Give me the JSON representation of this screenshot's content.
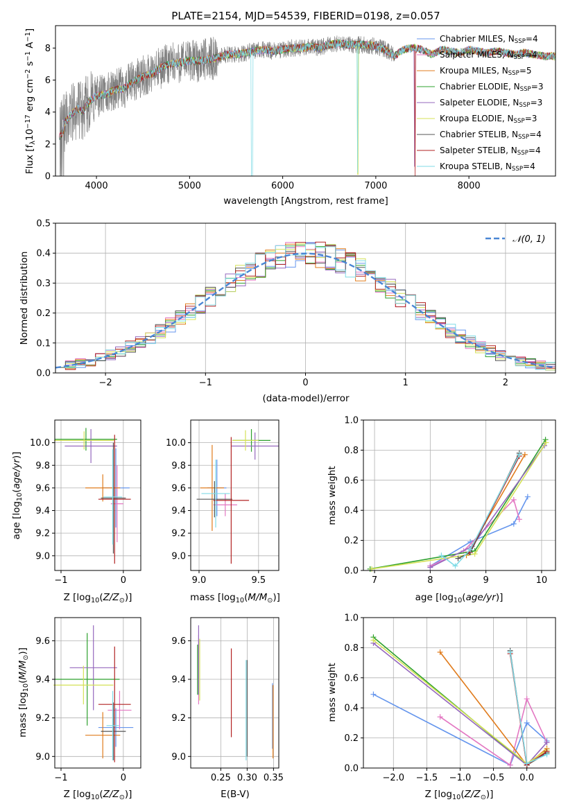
{
  "chart_data": [
    {
      "id": "spectrum",
      "type": "line",
      "title": "PLATE=2154, MJD=54539, FIBERID=0198, z=0.057",
      "xlabel": "wavelength [Angstrom, rest frame]",
      "ylabel": "Flux [f_λ 10^-17 erg cm^-2 s^-1 A^-1]",
      "xlim": [
        3560,
        8930
      ],
      "ylim": [
        0,
        9.4
      ],
      "xticks": [
        4000,
        5000,
        6000,
        7000,
        8000
      ],
      "yticks": [
        0,
        2,
        4,
        6,
        8
      ],
      "grid": false,
      "legend_position": "right",
      "data_color": "#808080",
      "continuum_points": {
        "x": [
          3600,
          3650,
          3700,
          3750,
          3800,
          3850,
          3900,
          3950,
          4000,
          4100,
          4200,
          4300,
          4400,
          4500,
          4600,
          4700,
          4800,
          4900,
          5000,
          5100,
          5200,
          5300,
          5400,
          5500,
          5600,
          5700,
          5800,
          5900,
          6000,
          6100,
          6200,
          6300,
          6400,
          6500,
          6600,
          6700,
          6800,
          6900,
          7000,
          7100,
          7200,
          7300,
          7400,
          7500,
          7600,
          7700,
          7800,
          7900,
          8000,
          8100,
          8200,
          8300,
          8400,
          8500,
          8600,
          8700,
          8800,
          8900
        ],
        "y": [
          2.8,
          3.3,
          3.6,
          4.0,
          4.2,
          4.0,
          4.5,
          4.8,
          5.0,
          5.1,
          5.4,
          5.5,
          5.9,
          6.2,
          6.4,
          6.8,
          7.0,
          7.1,
          7.2,
          7.2,
          7.3,
          7.4,
          7.6,
          7.6,
          7.7,
          7.8,
          7.9,
          7.8,
          7.9,
          8.0,
          8.0,
          8.1,
          8.0,
          8.2,
          8.3,
          8.2,
          8.2,
          8.2,
          8.1,
          7.9,
          7.5,
          7.9,
          8.0,
          7.9,
          7.6,
          7.9,
          7.8,
          7.7,
          7.9,
          7.8,
          7.7,
          7.8,
          7.7,
          7.6,
          7.7,
          7.6,
          7.5,
          7.5
        ]
      },
      "series": [
        {
          "name": "Chabrier MILES",
          "nssp": "4",
          "color": "#6495ed"
        },
        {
          "name": "Salpeter MILES",
          "nssp": "4",
          "color": "#e377c2"
        },
        {
          "name": "Kroupa MILES",
          "nssp": "5",
          "color": "#e07b1c"
        },
        {
          "name": "Chabrier ELODIE",
          "nssp": "3",
          "color": "#2ca02c"
        },
        {
          "name": "Salpeter ELODIE",
          "nssp": "3",
          "color": "#9467bd"
        },
        {
          "name": "Kroupa ELODIE",
          "nssp": "3",
          "color": "#d4e157"
        },
        {
          "name": "Chabrier STELIB",
          "nssp": "4",
          "color": "#555555"
        },
        {
          "name": "Salpeter STELIB",
          "nssp": "4",
          "color": "#b22222"
        },
        {
          "name": "Kroupa STELIB",
          "nssp": "4",
          "color": "#7fdbe6"
        }
      ]
    },
    {
      "id": "residuals",
      "type": "line",
      "xlabel": "(data-model)/error",
      "ylabel": "Normed distribution",
      "xlim": [
        -2.5,
        2.5
      ],
      "ylim": [
        0,
        0.5
      ],
      "xticks": [
        -2,
        -1,
        0,
        1,
        2
      ],
      "yticks": [
        0.0,
        0.1,
        0.2,
        0.3,
        0.4,
        0.5
      ],
      "grid": true,
      "legend_position": "top-right",
      "legend": "𝒩(0, 1)",
      "gaussian": {
        "mean": 0,
        "sigma": 1,
        "color": "#4a86d4"
      },
      "bin_width": 0.1,
      "series": [
        {
          "name": "Chabrier MILES",
          "color": "#6495ed",
          "jitter": 1
        },
        {
          "name": "Salpeter MILES",
          "color": "#e377c2",
          "jitter": 2
        },
        {
          "name": "Kroupa MILES",
          "color": "#e07b1c",
          "jitter": 3
        },
        {
          "name": "Chabrier ELODIE",
          "color": "#2ca02c",
          "jitter": 4
        },
        {
          "name": "Salpeter ELODIE",
          "color": "#9467bd",
          "jitter": 5
        },
        {
          "name": "Kroupa ELODIE",
          "color": "#d4e157",
          "jitter": 6
        },
        {
          "name": "Chabrier STELIB",
          "color": "#555555",
          "jitter": 7
        },
        {
          "name": "Salpeter STELIB",
          "color": "#b22222",
          "jitter": 8
        },
        {
          "name": "Kroupa STELIB",
          "color": "#7fdbe6",
          "jitter": 9
        }
      ]
    },
    {
      "id": "z-age",
      "type": "errorbar",
      "xlabel": "Z [log10(Z/Z☉)]",
      "ylabel": "age [log10(age/yr)]",
      "xlim": [
        -1.1,
        0.28
      ],
      "ylim": [
        8.87,
        10.2
      ],
      "xticks": [
        -1,
        0
      ],
      "yticks": [
        9.0,
        9.2,
        9.4,
        9.6,
        9.8,
        10.0
      ],
      "grid": true,
      "points": [
        {
          "color": "#6495ed",
          "x": -0.12,
          "xerr": 0.22,
          "y": 9.6,
          "yerr": 0.35
        },
        {
          "color": "#e377c2",
          "x": -0.1,
          "xerr": 0.1,
          "y": 9.46,
          "yerr": 0.34
        },
        {
          "color": "#e07b1c",
          "x": -0.33,
          "xerr": 0.28,
          "y": 9.6,
          "yerr": 0.12
        },
        {
          "color": "#2ca02c",
          "x": -0.6,
          "xerr": 0.5,
          "y": 10.03,
          "yerr": 0.1
        },
        {
          "color": "#9467bd",
          "x": -0.52,
          "xerr": 0.42,
          "y": 9.97,
          "yerr": 0.15
        },
        {
          "color": "#d4e157",
          "x": -0.63,
          "xerr": 0.48,
          "y": 10.02,
          "yerr": 0.08
        },
        {
          "color": "#555555",
          "x": -0.16,
          "xerr": 0.2,
          "y": 9.51,
          "yerr": 0.49
        },
        {
          "color": "#b22222",
          "x": -0.14,
          "xerr": 0.26,
          "y": 9.5,
          "yerr": 0.57
        },
        {
          "color": "#7fdbe6",
          "x": -0.17,
          "xerr": 0.15,
          "y": 9.52,
          "yerr": 0.42
        }
      ]
    },
    {
      "id": "mass-age",
      "type": "errorbar",
      "xlabel": "mass [log10(M/M☉)]",
      "xlim": [
        8.93,
        9.67
      ],
      "ylim": [
        8.87,
        10.2
      ],
      "xticks": [
        9.0,
        9.5
      ],
      "yticks": [
        9.0,
        9.2,
        9.4,
        9.6,
        9.8,
        10.0
      ],
      "grid": true,
      "points": [
        {
          "color": "#6495ed",
          "x": 9.15,
          "xerr": 0.08,
          "y": 9.6,
          "yerr": 0.25
        },
        {
          "color": "#e377c2",
          "x": 9.22,
          "xerr": 0.1,
          "y": 9.45,
          "yerr": 0.1
        },
        {
          "color": "#e07b1c",
          "x": 9.11,
          "xerr": 0.1,
          "y": 9.6,
          "yerr": 0.38
        },
        {
          "color": "#2ca02c",
          "x": 9.44,
          "xerr": 0.16,
          "y": 10.02,
          "yerr": 0.1
        },
        {
          "color": "#9467bd",
          "x": 9.47,
          "xerr": 0.2,
          "y": 9.97,
          "yerr": 0.12
        },
        {
          "color": "#d4e157",
          "x": 9.39,
          "xerr": 0.11,
          "y": 10.02,
          "yerr": 0.09
        },
        {
          "color": "#555555",
          "x": 9.13,
          "xerr": 0.15,
          "y": 9.5,
          "yerr": 0.16
        },
        {
          "color": "#b22222",
          "x": 9.27,
          "xerr": 0.15,
          "y": 9.49,
          "yerr": 0.56
        },
        {
          "color": "#7fdbe6",
          "x": 9.14,
          "xerr": 0.12,
          "y": 9.55,
          "yerr": 0.3
        }
      ]
    },
    {
      "id": "age-weight",
      "type": "line",
      "xlabel": "age  [log10(age/yr)]",
      "ylabel": "mass weight",
      "xlim": [
        6.8,
        10.25
      ],
      "ylim": [
        0,
        1.0
      ],
      "xticks": [
        7,
        8,
        9,
        10
      ],
      "yticks": [
        0.0,
        0.2,
        0.4,
        0.6,
        0.8,
        1.0
      ],
      "grid": true,
      "series": [
        {
          "color": "#6495ed",
          "x": [
            8.0,
            8.72,
            9.5,
            9.75
          ],
          "y": [
            0.03,
            0.19,
            0.31,
            0.49
          ]
        },
        {
          "color": "#e377c2",
          "x": [
            8.0,
            8.6,
            9.5,
            9.6
          ],
          "y": [
            0.03,
            0.13,
            0.47,
            0.34
          ]
        },
        {
          "color": "#e07b1c",
          "x": [
            8.65,
            9.7
          ],
          "y": [
            0.1,
            0.77
          ]
        },
        {
          "color": "#2ca02c",
          "x": [
            6.92,
            8.8,
            10.07
          ],
          "y": [
            0.01,
            0.13,
            0.87
          ]
        },
        {
          "color": "#9467bd",
          "x": [
            8.0,
            8.75,
            10.05
          ],
          "y": [
            0.02,
            0.16,
            0.83
          ]
        },
        {
          "color": "#d4e157",
          "x": [
            6.95,
            8.8,
            10.08
          ],
          "y": [
            0.01,
            0.11,
            0.85
          ]
        },
        {
          "color": "#555555",
          "x": [
            8.5,
            8.72,
            9.6
          ],
          "y": [
            0.08,
            0.12,
            0.78
          ]
        },
        {
          "color": "#b22222",
          "x": [
            8.7,
            9.6
          ],
          "y": [
            0.12,
            0.76
          ]
        },
        {
          "color": "#7fdbe6",
          "x": [
            8.2,
            8.45,
            8.72,
            9.6
          ],
          "y": [
            0.1,
            0.03,
            0.14,
            0.77
          ]
        }
      ]
    },
    {
      "id": "z-mass",
      "type": "errorbar",
      "xlabel": "Z [log10(Z/Z☉)]",
      "ylabel": "mass [log10(M/M☉)]",
      "xlim": [
        -1.1,
        0.28
      ],
      "ylim": [
        8.94,
        9.72
      ],
      "xticks": [
        -1,
        0
      ],
      "yticks": [
        9.0,
        9.2,
        9.4,
        9.6
      ],
      "grid": true,
      "points": [
        {
          "color": "#6495ed",
          "x": -0.12,
          "xerr": 0.28,
          "y": 9.15,
          "yerr": 0.1
        },
        {
          "color": "#e377c2",
          "x": -0.06,
          "xerr": 0.19,
          "y": 9.24,
          "yerr": 0.1
        },
        {
          "color": "#e07b1c",
          "x": -0.33,
          "xerr": 0.28,
          "y": 9.11,
          "yerr": 0.12
        },
        {
          "color": "#2ca02c",
          "x": -0.58,
          "xerr": 0.52,
          "y": 9.4,
          "yerr": 0.24
        },
        {
          "color": "#9467bd",
          "x": -0.48,
          "xerr": 0.38,
          "y": 9.46,
          "yerr": 0.22
        },
        {
          "color": "#d4e157",
          "x": -0.64,
          "xerr": 0.48,
          "y": 9.37,
          "yerr": 0.1
        },
        {
          "color": "#555555",
          "x": -0.16,
          "xerr": 0.2,
          "y": 9.13,
          "yerr": 0.15
        },
        {
          "color": "#b22222",
          "x": -0.14,
          "xerr": 0.26,
          "y": 9.27,
          "yerr": 0.3
        },
        {
          "color": "#7fdbe6",
          "x": -0.17,
          "xerr": 0.1,
          "y": 9.16,
          "yerr": 0.18
        }
      ]
    },
    {
      "id": "ebv-mass",
      "type": "errorbar",
      "xlabel": "E(B-V)",
      "xlim": [
        0.193,
        0.36
      ],
      "ylim": [
        8.94,
        9.72
      ],
      "xticks": [
        0.25,
        0.3,
        0.35
      ],
      "xticklabels": [
        "0.25",
        "0.30",
        "0.35"
      ],
      "yticks": [
        9.0,
        9.2,
        9.4,
        9.6
      ],
      "grid": true,
      "points": [
        {
          "color": "#6495ed",
          "x": 0.348,
          "xerr": 0,
          "y": 9.21,
          "yerr": 0.17
        },
        {
          "color": "#e377c2",
          "x": 0.208,
          "xerr": 0,
          "y": 9.45,
          "yerr": 0.18
        },
        {
          "color": "#e07b1c",
          "x": 0.349,
          "xerr": 0,
          "y": 9.18,
          "yerr": 0.19
        },
        {
          "color": "#2ca02c",
          "x": 0.206,
          "xerr": 0,
          "y": 9.45,
          "yerr": 0.13
        },
        {
          "color": "#9467bd",
          "x": 0.208,
          "xerr": 0,
          "y": 9.5,
          "yerr": 0.18
        },
        {
          "color": "#d4e157",
          "x": 0.21,
          "xerr": 0,
          "y": 9.45,
          "yerr": 0.16
        },
        {
          "color": "#555555",
          "x": 0.3,
          "xerr": 0,
          "y": 9.25,
          "yerr": 0.25
        },
        {
          "color": "#b22222",
          "x": 0.27,
          "xerr": 0,
          "y": 9.33,
          "yerr": 0.23
        },
        {
          "color": "#7fdbe6",
          "x": 0.298,
          "xerr": 0,
          "y": 9.24,
          "yerr": 0.26
        }
      ]
    },
    {
      "id": "z-weight",
      "type": "line",
      "xlabel": "Z [log10(Z/Z☉)]",
      "ylabel": "mass weight",
      "xlim": [
        -2.45,
        0.43
      ],
      "ylim": [
        0,
        1.0
      ],
      "xticks": [
        -2.0,
        -1.5,
        -1.0,
        -0.5,
        0.0
      ],
      "xticklabels": [
        "−2.0",
        "−1.5",
        "−1.0",
        "−0.5",
        "0.0"
      ],
      "yticks": [
        0.0,
        0.2,
        0.4,
        0.6,
        0.8,
        1.0
      ],
      "grid": true,
      "series": [
        {
          "color": "#6495ed",
          "x": [
            -2.3,
            -0.25,
            0.0,
            0.3
          ],
          "y": [
            0.49,
            0.02,
            0.3,
            0.18
          ]
        },
        {
          "color": "#e377c2",
          "x": [
            -1.3,
            -0.25,
            0.0,
            0.3
          ],
          "y": [
            0.34,
            0.02,
            0.46,
            0.17
          ]
        },
        {
          "color": "#e07b1c",
          "x": [
            -1.3,
            0.0,
            0.3
          ],
          "y": [
            0.77,
            0.02,
            0.13
          ]
        },
        {
          "color": "#2ca02c",
          "x": [
            -2.3,
            0.0,
            0.3
          ],
          "y": [
            0.87,
            0.02,
            0.1
          ]
        },
        {
          "color": "#9467bd",
          "x": [
            -2.3,
            0.0,
            0.3
          ],
          "y": [
            0.83,
            0.02,
            0.17
          ]
        },
        {
          "color": "#d4e157",
          "x": [
            -2.3,
            0.0,
            0.3
          ],
          "y": [
            0.85,
            0.03,
            0.12
          ]
        },
        {
          "color": "#555555",
          "x": [
            -0.25,
            0.0,
            0.3
          ],
          "y": [
            0.78,
            0.02,
            0.1
          ]
        },
        {
          "color": "#b22222",
          "x": [
            -0.25,
            0.0,
            0.3
          ],
          "y": [
            0.76,
            0.02,
            0.11
          ]
        },
        {
          "color": "#7fdbe6",
          "x": [
            -0.25,
            0.0,
            0.3
          ],
          "y": [
            0.77,
            0.03,
            0.09
          ]
        }
      ]
    }
  ]
}
